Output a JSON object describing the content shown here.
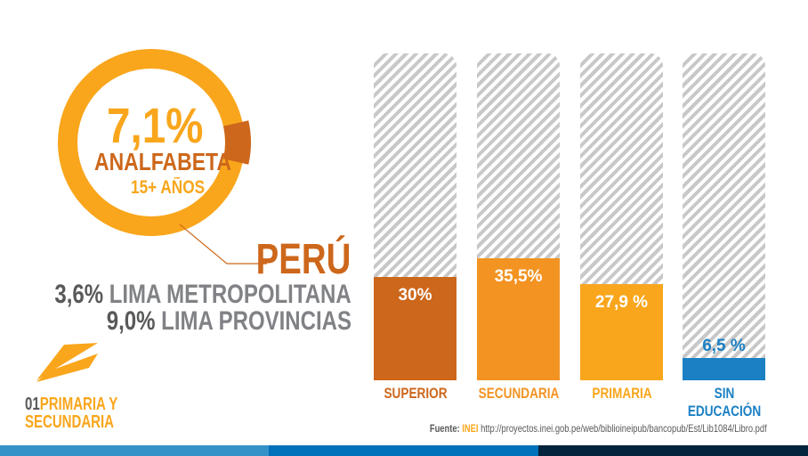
{
  "ring": {
    "value": "7,1%",
    "label": "ANALFABETA",
    "sublabel": "15+ AÑOS",
    "highlight_percent": 7.1
  },
  "country": "PERÚ",
  "regions": [
    {
      "value": "3,6%",
      "label": "LIMA METROPOLITANA"
    },
    {
      "value": "9,0%",
      "label": "LIMA PROVINCIAS"
    }
  ],
  "section": {
    "number": "01",
    "title_line1": "PRIMARIA Y",
    "title_line2": "SECUNDARIA"
  },
  "colors": {
    "superior": "#cd671b",
    "secundaria": "#f39322",
    "primaria": "#f9a61c",
    "sin_educacion": "#1b80c4",
    "gray": "#58595b"
  },
  "chart_data": {
    "type": "bar",
    "categories": [
      "SUPERIOR",
      "SECUNDARIA",
      "PRIMARIA",
      "SIN EDUCACIÓN"
    ],
    "values": [
      30,
      35.5,
      27.9,
      6.5
    ],
    "labels": [
      "30%",
      "35,5%",
      "27,9 %",
      "6,5 %"
    ],
    "ylim": [
      0,
      100
    ]
  },
  "source": {
    "prefix": "Fuente:",
    "org": "INEI",
    "url": "http://proyectos.inei.gob.pe/web/biblioineipub/bancopub/Est/Lib1084/Libro.pdf"
  }
}
